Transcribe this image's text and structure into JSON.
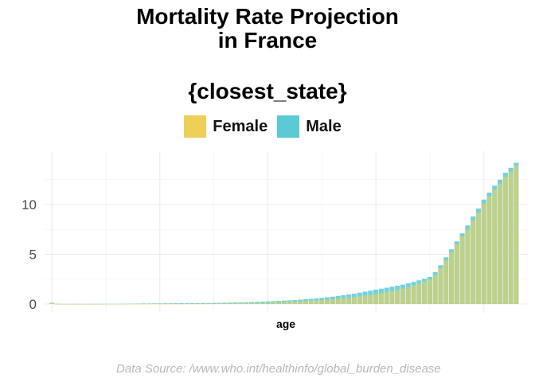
{
  "chart_data": {
    "type": "bar",
    "title_lines": [
      "Mortality Rate Projection",
      "in France"
    ],
    "subtitle": "{closest_state}",
    "xlabel": "age",
    "ylabel": "",
    "ylim": [
      0,
      14.6
    ],
    "yticks": [
      0,
      5,
      10
    ],
    "x_range": [
      -1.5,
      88
    ],
    "grid": true,
    "legend_position": "top",
    "caption": "Data Source: /www.who.int/healthinfo/global_burden_disease",
    "colors": {
      "Female": "#EFCF58",
      "Male": "#5BCAD3",
      "overlap": "#B2CC87"
    },
    "series": [
      {
        "name": "Female",
        "x": [
          0,
          1,
          2,
          3,
          4,
          5,
          6,
          7,
          8,
          9,
          10,
          11,
          12,
          13,
          14,
          15,
          16,
          17,
          18,
          19,
          20,
          21,
          22,
          23,
          24,
          25,
          26,
          27,
          28,
          29,
          30,
          31,
          32,
          33,
          34,
          35,
          36,
          37,
          38,
          39,
          40,
          41,
          42,
          43,
          44,
          45,
          46,
          47,
          48,
          49,
          50,
          51,
          52,
          53,
          54,
          55,
          56,
          57,
          58,
          59,
          60,
          61,
          62,
          63,
          64,
          65,
          66,
          67,
          68,
          69,
          70,
          71,
          72,
          73,
          74,
          75,
          76,
          77,
          78,
          79,
          80,
          81,
          82,
          83,
          84,
          85,
          86
        ],
        "values": [
          0.1,
          0.02,
          0.01,
          0.01,
          0.01,
          0.01,
          0.01,
          0.01,
          0.01,
          0.01,
          0.01,
          0.01,
          0.01,
          0.01,
          0.01,
          0.01,
          0.01,
          0.01,
          0.01,
          0.01,
          0.02,
          0.02,
          0.02,
          0.02,
          0.02,
          0.03,
          0.03,
          0.03,
          0.03,
          0.04,
          0.04,
          0.05,
          0.05,
          0.06,
          0.07,
          0.08,
          0.09,
          0.1,
          0.11,
          0.12,
          0.14,
          0.16,
          0.18,
          0.2,
          0.22,
          0.24,
          0.27,
          0.3,
          0.33,
          0.36,
          0.4,
          0.44,
          0.48,
          0.53,
          0.58,
          0.64,
          0.7,
          0.77,
          0.84,
          0.92,
          1.0,
          1.1,
          1.2,
          1.3,
          1.42,
          1.55,
          1.7,
          1.86,
          2.04,
          2.24,
          2.46,
          2.9,
          3.6,
          4.4,
          5.2,
          6.0,
          6.8,
          7.5,
          8.4,
          9.2,
          10.1,
          10.8,
          11.5,
          12.1,
          12.8,
          13.3,
          13.9
        ]
      },
      {
        "name": "Male",
        "x": [
          0,
          1,
          2,
          3,
          4,
          5,
          6,
          7,
          8,
          9,
          10,
          11,
          12,
          13,
          14,
          15,
          16,
          17,
          18,
          19,
          20,
          21,
          22,
          23,
          24,
          25,
          26,
          27,
          28,
          29,
          30,
          31,
          32,
          33,
          34,
          35,
          36,
          37,
          38,
          39,
          40,
          41,
          42,
          43,
          44,
          45,
          46,
          47,
          48,
          49,
          50,
          51,
          52,
          53,
          54,
          55,
          56,
          57,
          58,
          59,
          60,
          61,
          62,
          63,
          64,
          65,
          66,
          67,
          68,
          69,
          70,
          71,
          72,
          73,
          74,
          75,
          76,
          77,
          78,
          79,
          80,
          81,
          82,
          83,
          84,
          85,
          86
        ],
        "values": [
          0.12,
          0.02,
          0.01,
          0.01,
          0.01,
          0.01,
          0.01,
          0.01,
          0.01,
          0.01,
          0.02,
          0.02,
          0.02,
          0.02,
          0.03,
          0.03,
          0.04,
          0.05,
          0.05,
          0.06,
          0.06,
          0.07,
          0.07,
          0.08,
          0.08,
          0.08,
          0.09,
          0.09,
          0.1,
          0.1,
          0.11,
          0.12,
          0.13,
          0.14,
          0.15,
          0.16,
          0.18,
          0.2,
          0.22,
          0.24,
          0.26,
          0.28,
          0.31,
          0.34,
          0.37,
          0.4,
          0.44,
          0.48,
          0.52,
          0.57,
          0.62,
          0.68,
          0.74,
          0.81,
          0.88,
          0.96,
          1.04,
          1.14,
          1.24,
          1.34,
          1.44,
          1.54,
          1.64,
          1.74,
          1.84,
          1.95,
          2.08,
          2.22,
          2.38,
          2.55,
          2.72,
          3.2,
          3.9,
          4.7,
          5.5,
          6.3,
          7.1,
          7.9,
          8.8,
          9.6,
          10.5,
          11.2,
          11.9,
          12.5,
          13.2,
          13.7,
          14.2
        ]
      }
    ]
  }
}
